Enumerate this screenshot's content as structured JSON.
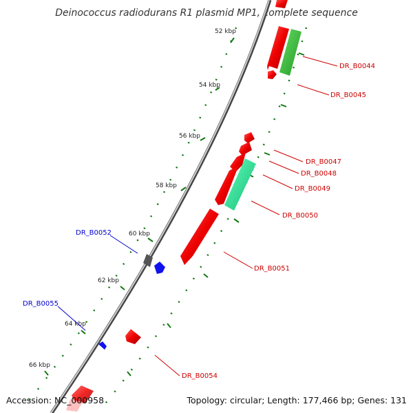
{
  "title": "Deinococcus radiodurans R1 plasmid MP1, complete sequence",
  "accession": "Accession: NC_000958",
  "topology": "Topology: circular; Length: 177,466 bp; Genes: 131",
  "ticks": [
    {
      "label": "52 kbp"
    },
    {
      "label": "54 kbp"
    },
    {
      "label": "56 kbp"
    },
    {
      "label": "58 kbp"
    },
    {
      "label": "60 kbp"
    },
    {
      "label": "62 kbp"
    },
    {
      "label": "64 kbp"
    },
    {
      "label": "66 kbp"
    }
  ],
  "genes": [
    {
      "label": "DR_B0044",
      "label_color": "#cc0000"
    },
    {
      "label": "DR_B0045",
      "label_color": "#cc0000"
    },
    {
      "label": "DR_B0047",
      "label_color": "#cc0000"
    },
    {
      "label": "DR_B0048",
      "label_color": "#cc0000"
    },
    {
      "label": "DR_B0049",
      "label_color": "#cc0000"
    },
    {
      "label": "DR_B0050",
      "label_color": "#cc0000"
    },
    {
      "label": "DR_B0051",
      "label_color": "#cc0000"
    },
    {
      "label": "DR_B0052",
      "label_color": "#0000cc"
    },
    {
      "label": "DR_B0054",
      "label_color": "#cc0000"
    },
    {
      "label": "DR_B0055",
      "label_color": "#0000cc"
    }
  ],
  "colors": {
    "forward_gene": "#ee1111",
    "reverse_gene": "#1111ee",
    "rrna_like": "#22dd88",
    "green_gene": "#33bb33",
    "gray_gene": "#666666",
    "tick_mark": "#117711",
    "backbone": "#888888"
  }
}
